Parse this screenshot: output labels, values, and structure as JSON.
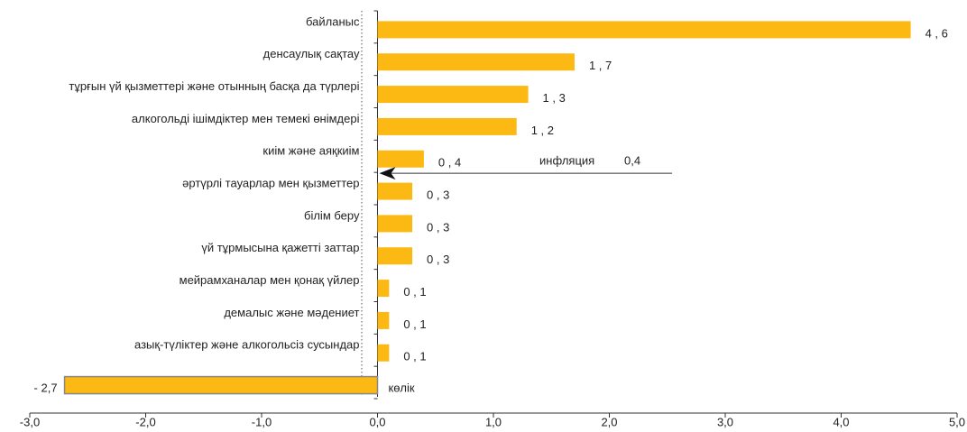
{
  "chart_data": {
    "type": "barh",
    "categories": [
      "байланыс",
      "денсаулық сақтау",
      "тұрғын үй қызметтері және отынның басқа да түрлері",
      "алкогольді ішімдіктер мен темекі өнімдері",
      "киім және аяқкиім",
      "әртүрлі тауарлар мен қызметтер",
      "білім беру",
      "үй тұрмысына қажетті заттар",
      "мейрамханалар мен қонақ үйлер",
      "демалыс және мәдениет",
      "азық-түліктер және алкогольсіз сусындар",
      "көлік"
    ],
    "values": [
      4.6,
      1.7,
      1.3,
      1.2,
      0.4,
      0.3,
      0.3,
      0.3,
      0.1,
      0.1,
      0.1,
      -2.7
    ],
    "value_labels": [
      "4 , 6",
      "1 , 7",
      "1 , 3",
      "1 , 2",
      "0 , 4",
      "0 , 3",
      "0 , 3",
      "0 , 3",
      "0 , 1",
      "0 , 1",
      "0 , 1",
      "- 2,7"
    ],
    "color": "#FDB913",
    "xlim": [
      -3,
      5
    ],
    "xticks": [
      {
        "value": -3,
        "label": "-3,0"
      },
      {
        "value": -2,
        "label": "-2,0"
      },
      {
        "value": -1,
        "label": "-1,0"
      },
      {
        "value": 0,
        "label": "0,0"
      },
      {
        "value": 1,
        "label": "1,0"
      },
      {
        "value": 2,
        "label": "2,0"
      },
      {
        "value": 3,
        "label": "3,0"
      },
      {
        "value": 4,
        "label": "4,0"
      },
      {
        "value": 5,
        "label": "5,0"
      }
    ],
    "annotation": {
      "text": "инфляция",
      "value": 0.4,
      "value_label": "0,4"
    }
  }
}
